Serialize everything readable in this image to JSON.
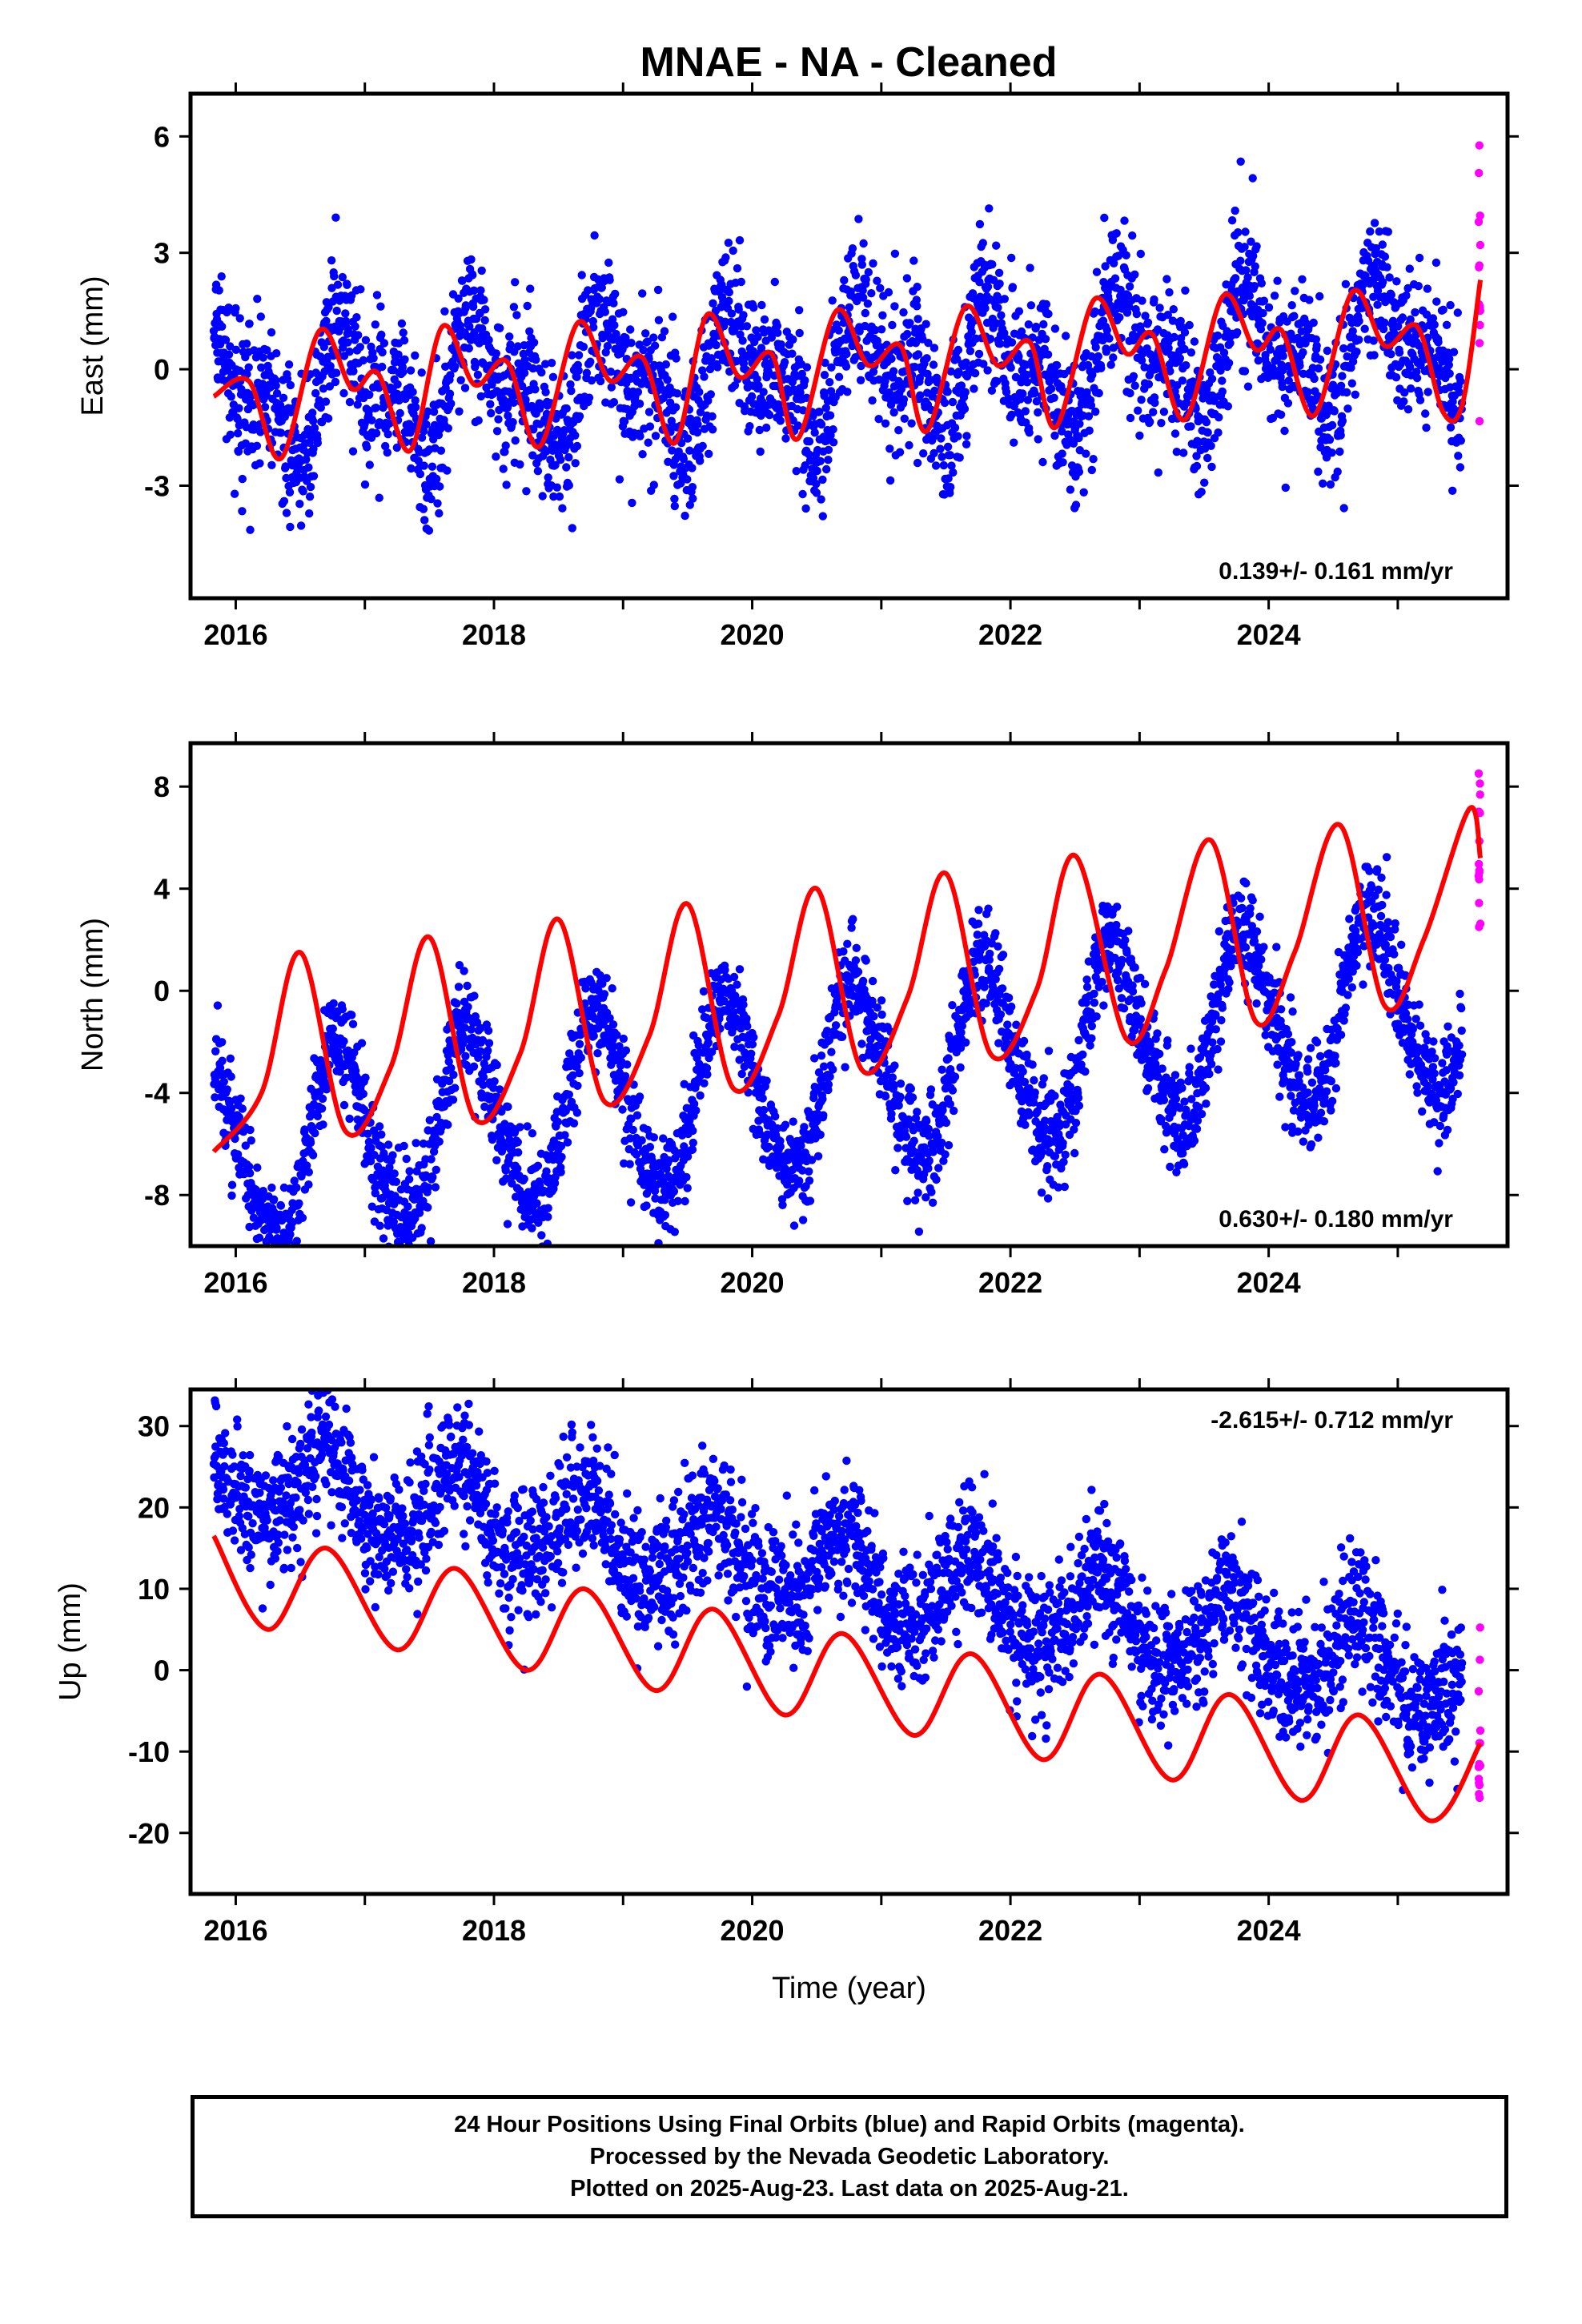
{
  "title": "MNAE  - NA - Cleaned",
  "footer": {
    "line1": "24 Hour Positions Using Final Orbits (blue) and Rapid Orbits (magenta).",
    "line2": "Processed by the Nevada Geodetic Laboratory.",
    "line3": "Plotted on 2025-Aug-23. Last data on 2025-Aug-21."
  },
  "colors": {
    "final_orbits": "#0000ff",
    "rapid_orbits": "#ff00ff",
    "model_fit": "#ff0000",
    "frame": "#000000"
  },
  "chart_data": [
    {
      "type": "scatter",
      "ylabel": "East (mm)",
      "xlabel": "",
      "xlim": [
        2015.65,
        2025.85
      ],
      "ylim": [
        -5.9,
        7.1
      ],
      "xticks": [
        2016,
        2018,
        2020,
        2022,
        2024
      ],
      "yticks": [
        -3,
        0,
        3,
        6
      ],
      "rate_label": "0.139+/- 0.161 mm/yr",
      "rate_position": "bottom-right",
      "model": {
        "slope": 0.139,
        "offset": -0.1,
        "annual_amp": 1.2,
        "annual_phase": 0.65,
        "semiannual_amp": 0.85,
        "semiannual_phase": 0.15,
        "noise_sd": 0.95
      },
      "series": [
        {
          "name": "Final Orbits",
          "color": "#0000ff",
          "x_start": 2015.83,
          "x_end": 2025.5
        },
        {
          "name": "Rapid Orbits",
          "color": "#ff00ff",
          "x_start": 2025.5,
          "x_end": 2025.64
        }
      ],
      "fit_line": {
        "color": "#ff0000",
        "x": [
          2015.83,
          2016.1,
          2016.35,
          2016.65,
          2016.9,
          2017.1,
          2017.35,
          2017.6,
          2017.85,
          2018.1,
          2018.35,
          2018.65,
          2018.9,
          2019.15,
          2019.4,
          2019.65,
          2019.9,
          2020.15,
          2020.35,
          2020.65,
          2020.9,
          2021.15,
          2021.35,
          2021.65,
          2021.9,
          2022.15,
          2022.35,
          2022.65,
          2022.9,
          2023.1,
          2023.35,
          2023.65,
          2023.9,
          2024.1,
          2024.35,
          2024.65,
          2024.9,
          2025.15,
          2025.35,
          2025.5,
          2025.64
        ],
        "y": [
          -0.7,
          -0.3,
          -2.3,
          1.0,
          -0.5,
          -0.1,
          -2.1,
          1.1,
          -0.4,
          0.2,
          -2.0,
          1.2,
          -0.3,
          0.3,
          -1.9,
          1.4,
          -0.2,
          0.4,
          -1.8,
          1.5,
          0.1,
          0.6,
          -1.6,
          1.6,
          0.1,
          0.7,
          -1.5,
          1.8,
          0.4,
          0.9,
          -1.3,
          1.9,
          0.5,
          1.0,
          -1.2,
          2.0,
          0.6,
          1.1,
          -1.1,
          -0.9,
          2.3
        ]
      }
    },
    {
      "type": "scatter",
      "ylabel": "North (mm)",
      "xlabel": "",
      "xlim": [
        2015.65,
        2025.85
      ],
      "ylim": [
        -10.0,
        9.7
      ],
      "xticks": [
        2016,
        2018,
        2020,
        2022,
        2024
      ],
      "yticks": [
        -8,
        -4,
        0,
        4,
        8
      ],
      "rate_label": "0.630+/- 0.180 mm/yr",
      "rate_position": "bottom-right",
      "model": {
        "slope": 0.63,
        "offset": -3.5,
        "annual_amp": 3.6,
        "annual_phase": 0.55,
        "semiannual_amp": 0.4,
        "semiannual_phase": 0.1,
        "noise_sd": 1.0
      },
      "series": [
        {
          "name": "Final Orbits",
          "color": "#0000ff",
          "x_start": 2015.83,
          "x_end": 2025.5
        },
        {
          "name": "Rapid Orbits",
          "color": "#ff00ff",
          "x_start": 2025.5,
          "x_end": 2025.64
        }
      ],
      "fit_line": {
        "color": "#ff0000",
        "x": [
          2015.83,
          2016.2,
          2016.5,
          2016.85,
          2017.2,
          2017.5,
          2017.85,
          2018.2,
          2018.5,
          2018.85,
          2019.2,
          2019.5,
          2019.85,
          2020.2,
          2020.5,
          2020.85,
          2021.2,
          2021.5,
          2021.85,
          2022.2,
          2022.5,
          2022.9,
          2023.2,
          2023.55,
          2023.9,
          2024.2,
          2024.55,
          2024.9,
          2025.2,
          2025.55,
          2025.64
        ],
        "y": [
          -6.3,
          -4.0,
          1.5,
          -5.5,
          -3.0,
          2.1,
          -5.0,
          -2.5,
          2.8,
          -4.3,
          -1.8,
          3.4,
          -3.8,
          -1.0,
          4.0,
          -3.1,
          -0.3,
          4.6,
          -2.5,
          0.0,
          5.3,
          -1.9,
          0.8,
          5.9,
          -1.2,
          1.5,
          6.5,
          -0.6,
          2.0,
          7.1,
          5.2
        ]
      }
    },
    {
      "type": "scatter",
      "ylabel": "Up (mm)",
      "xlabel": "Time (year)",
      "xlim": [
        2015.65,
        2025.85
      ],
      "ylim": [
        -27.5,
        34.5
      ],
      "xticks": [
        2016,
        2018,
        2020,
        2022,
        2024
      ],
      "yticks": [
        -20,
        -10,
        0,
        10,
        20,
        30
      ],
      "rate_label": "-2.615+/- 0.712 mm/yr",
      "rate_position": "top-right",
      "model": {
        "slope": -2.615,
        "offset": 12.0,
        "annual_amp": 5.0,
        "annual_phase": 0.45,
        "semiannual_amp": 0.8,
        "semiannual_phase": 0.1,
        "noise_sd": 4.0
      },
      "series": [
        {
          "name": "Final Orbits",
          "color": "#0000ff",
          "x_start": 2015.83,
          "x_end": 2025.5
        },
        {
          "name": "Rapid Orbits",
          "color": "#ff00ff",
          "x_start": 2025.5,
          "x_end": 2025.64
        }
      ],
      "fit_line": {
        "color": "#ff0000",
        "x": [
          2015.83,
          2016.25,
          2016.7,
          2017.25,
          2017.7,
          2018.25,
          2018.7,
          2019.25,
          2019.7,
          2020.25,
          2020.7,
          2021.25,
          2021.7,
          2022.25,
          2022.7,
          2023.25,
          2023.7,
          2024.25,
          2024.7,
          2025.25,
          2025.64
        ],
        "y": [
          16.5,
          5.0,
          15.0,
          2.5,
          12.5,
          0.0,
          10.0,
          -2.5,
          7.5,
          -5.5,
          4.5,
          -8.0,
          2.0,
          -11.0,
          -0.5,
          -13.5,
          -3.0,
          -16.0,
          -5.5,
          -18.5,
          -9.0
        ]
      }
    }
  ]
}
